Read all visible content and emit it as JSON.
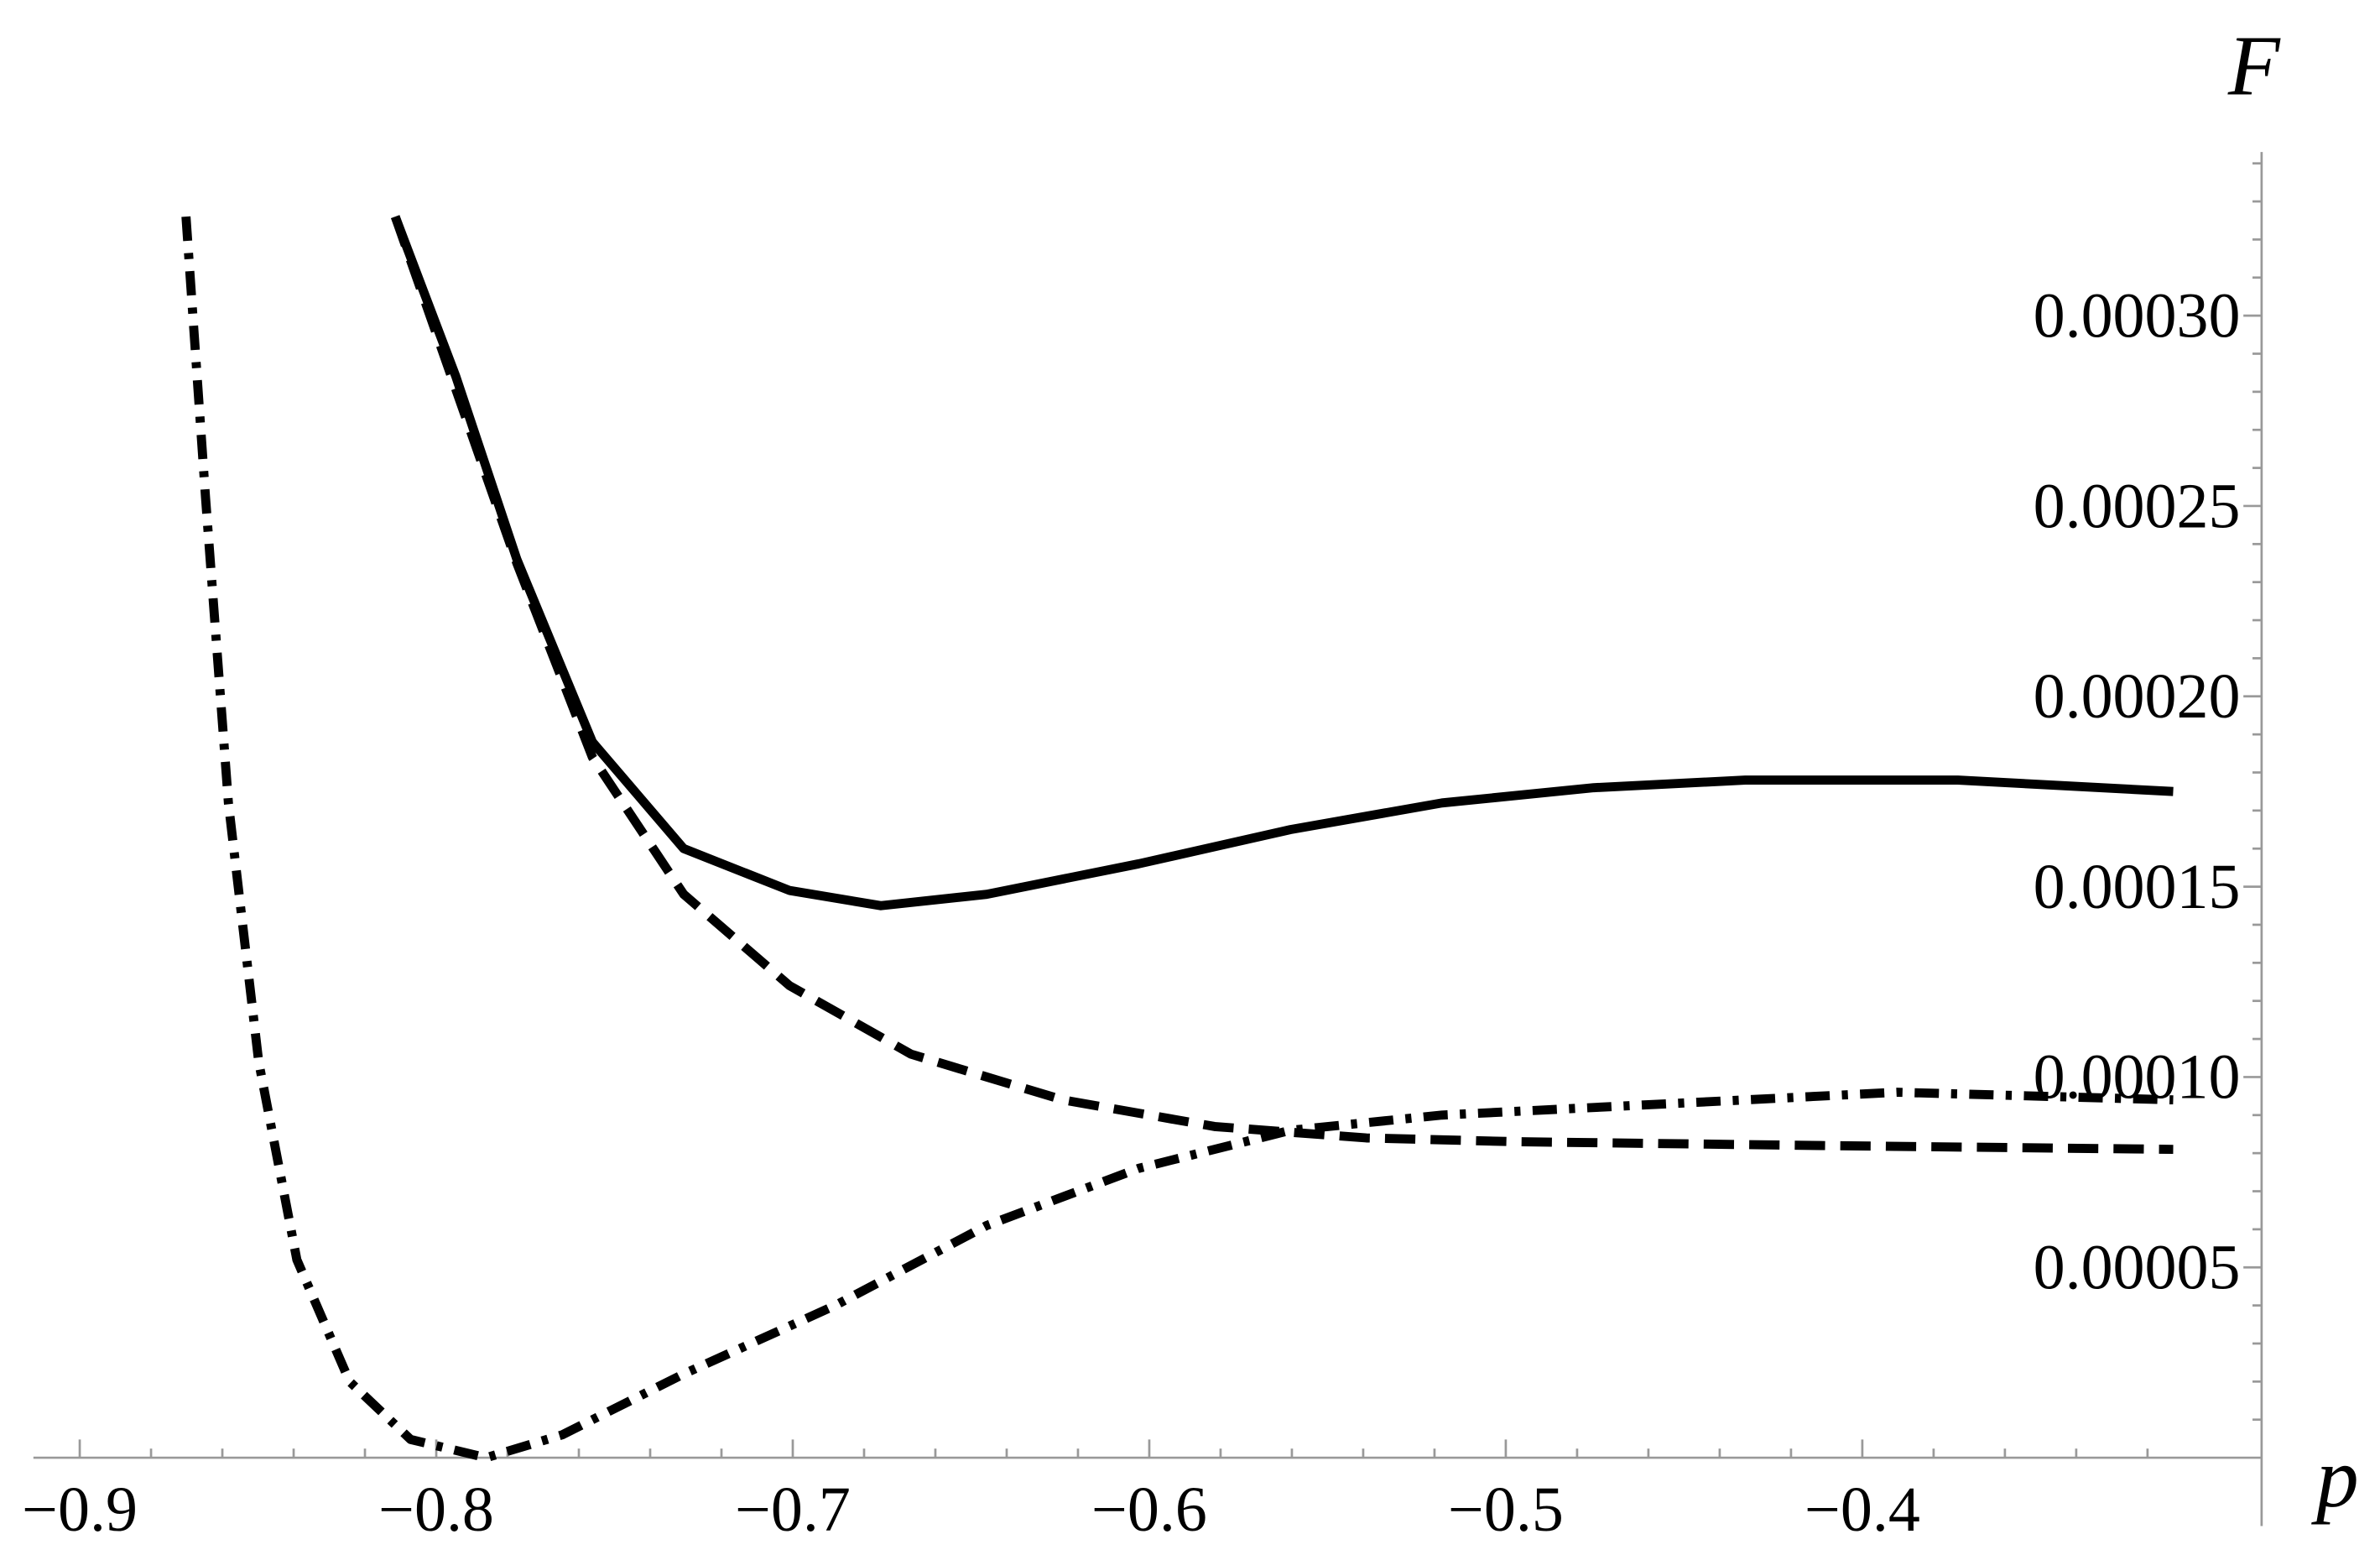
{
  "chart_data": {
    "type": "line",
    "x_label": "p",
    "y_label": "F",
    "xlim": [
      -0.913,
      -0.288
    ],
    "ylim": [
      0,
      0.000343
    ],
    "xticks": [
      {
        "value": -0.9,
        "label": "−0.9"
      },
      {
        "value": -0.8,
        "label": "−0.8"
      },
      {
        "value": -0.7,
        "label": "−0.7"
      },
      {
        "value": -0.6,
        "label": "−0.6"
      },
      {
        "value": -0.5,
        "label": "−0.5"
      },
      {
        "value": -0.4,
        "label": "−0.4"
      }
    ],
    "yticks": [
      {
        "value": 5e-05,
        "label": "0.00005"
      },
      {
        "value": 0.0001,
        "label": "0.00010"
      },
      {
        "value": 0.00015,
        "label": "0.00015"
      },
      {
        "value": 0.0002,
        "label": "0.00020"
      },
      {
        "value": 0.00025,
        "label": "0.00025"
      },
      {
        "value": 0.0003,
        "label": "0.00030"
      }
    ],
    "series": [
      {
        "color": "#000000",
        "dash": "solid",
        "x": [
          -0.8115,
          -0.7945,
          -0.7774,
          -0.7562,
          -0.7306,
          -0.7009,
          -0.6753,
          -0.6456,
          -0.603,
          -0.5604,
          -0.5179,
          -0.4753,
          -0.4328,
          -0.3732,
          -0.3128
        ],
        "values": [
          0.000326,
          0.000284,
          0.000236,
          0.000188,
          0.00016,
          0.000149,
          0.000145,
          0.000148,
          0.000156,
          0.000165,
          0.000172,
          0.000176,
          0.000178,
          0.000178,
          0.000175
        ]
      },
      {
        "color": "#000000",
        "dash": "dashed",
        "x": [
          -0.8115,
          -0.7774,
          -0.7562,
          -0.7306,
          -0.7009,
          -0.6668,
          -0.6243,
          -0.5817,
          -0.5391,
          -0.4966,
          -0.4115,
          -0.3128
        ],
        "values": [
          0.000326,
          0.000235,
          0.000184,
          0.000148,
          0.000124,
          0.000106,
          9.4e-05,
          8.7e-05,
          8.4e-05,
          8.3e-05,
          8.2e-05,
          8.1e-05
        ]
      },
      {
        "color": "#000000",
        "dash": "dashdot",
        "x": [
          -0.8702,
          -0.8647,
          -0.8583,
          -0.8498,
          -0.8391,
          -0.8243,
          -0.8072,
          -0.786,
          -0.7647,
          -0.7306,
          -0.6881,
          -0.6456,
          -0.603,
          -0.5604,
          -0.5179,
          -0.454,
          -0.3902,
          -0.3128
        ],
        "values": [
          0.000326,
          0.000252,
          0.000172,
          0.000104,
          5.2e-05,
          2e-05,
          4.8e-06,
          0,
          6e-06,
          2.2e-05,
          4e-05,
          6.1e-05,
          7.6e-05,
          8.6e-05,
          9e-05,
          9.3e-05,
          9.6e-05,
          9.4e-05
        ]
      }
    ]
  }
}
